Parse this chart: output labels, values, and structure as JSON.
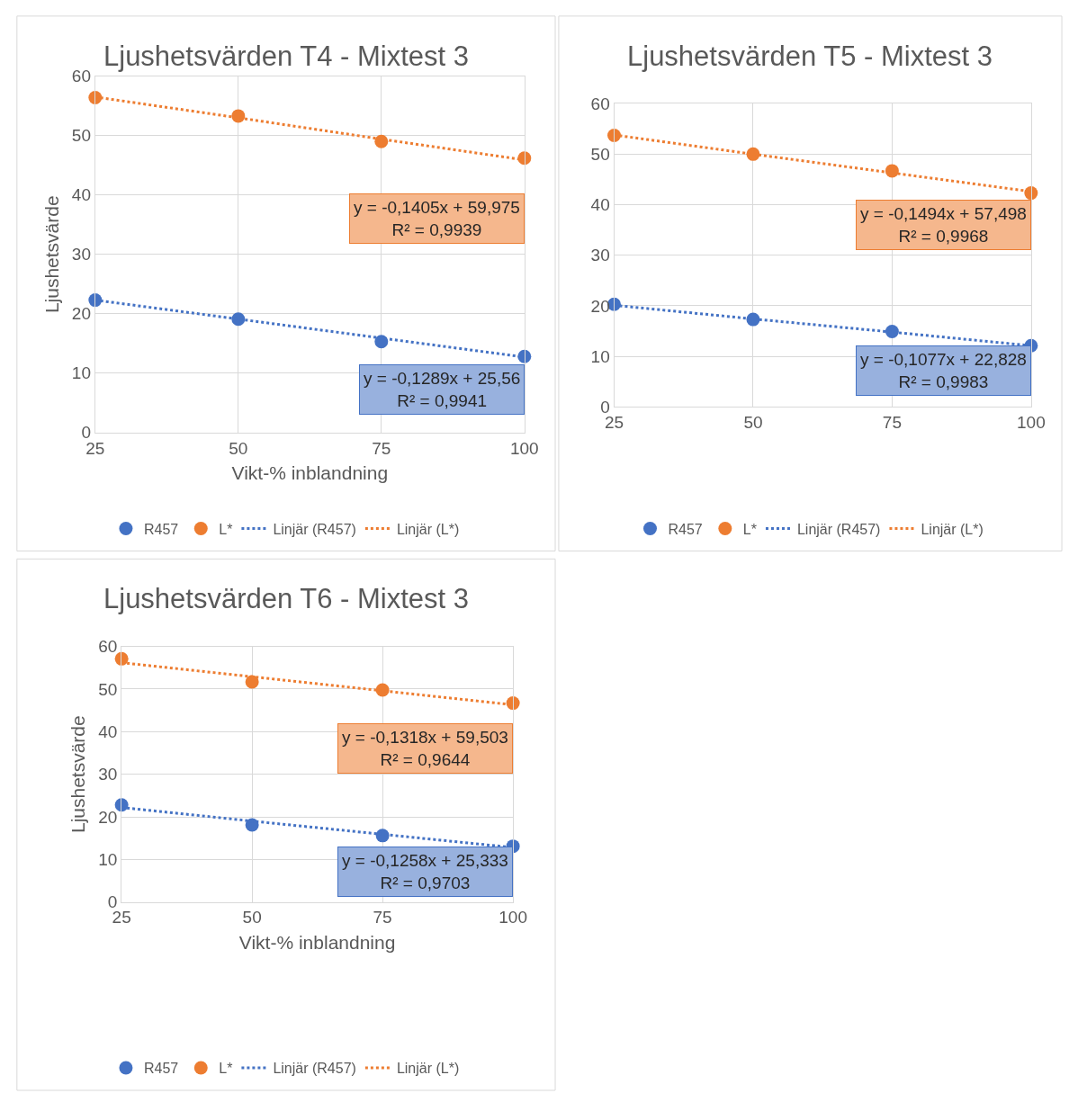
{
  "chart_data": [
    {
      "type": "scatter",
      "title": "Ljushetsvärden T4 - Mixtest 3",
      "xlabel": "Vikt-% inblandning",
      "ylabel": "Ljushetsvärde",
      "x": [
        25,
        50,
        75,
        100
      ],
      "xlim": [
        25,
        100
      ],
      "xticks": [
        25,
        50,
        75,
        100
      ],
      "ylim": [
        0,
        60
      ],
      "yticks": [
        0,
        10,
        20,
        30,
        40,
        50,
        60
      ],
      "grid": true,
      "legend": "bottom",
      "marker": "circle",
      "series": [
        {
          "name": "R457",
          "color": "#4472c4",
          "values": [
            22.3,
            19.1,
            15.3,
            12.8
          ]
        },
        {
          "name": "L*",
          "color": "#ed7d31",
          "values": [
            56.4,
            53.3,
            49.0,
            46.2
          ]
        },
        {
          "name": "Linjär (R457)",
          "type": "line",
          "marker": "none",
          "line_style": "dotted",
          "color": "#4472c4",
          "values": [
            22.3,
            19.1,
            15.9,
            12.7
          ]
        },
        {
          "name": "Linjär (L*)",
          "type": "line",
          "marker": "none",
          "line_style": "dotted",
          "color": "#ed7d31",
          "values": [
            56.5,
            53.0,
            49.4,
            45.9
          ]
        }
      ],
      "annotations": [
        "y = -0,1289x + 25,56\nR² = 0,9941",
        "y = -0,1405x + 59,975\nR² = 0,9939"
      ]
    },
    {
      "type": "scatter",
      "title": "Ljushetsvärden T5 - Mixtest 3",
      "x": [
        25,
        50,
        75,
        100
      ],
      "xlim": [
        25,
        100
      ],
      "xticks": [
        25,
        50,
        75,
        100
      ],
      "ylim": [
        0,
        60
      ],
      "yticks": [
        0,
        10,
        20,
        30,
        40,
        50,
        60
      ],
      "grid": true,
      "legend": "bottom",
      "marker": "circle",
      "series": [
        {
          "name": "R457",
          "color": "#4472c4",
          "values": [
            20.3,
            17.3,
            14.9,
            12.1
          ]
        },
        {
          "name": "L*",
          "color": "#ed7d31",
          "values": [
            53.7,
            50.0,
            46.7,
            42.3
          ]
        },
        {
          "name": "Linjär (R457)",
          "type": "line",
          "marker": "none",
          "line_style": "dotted",
          "color": "#4472c4",
          "values": [
            20.1,
            17.4,
            14.8,
            12.1
          ]
        },
        {
          "name": "Linjär (L*)",
          "type": "line",
          "marker": "none",
          "line_style": "dotted",
          "color": "#ed7d31",
          "values": [
            53.8,
            50.0,
            46.3,
            42.6
          ]
        }
      ],
      "annotations": [
        "y = -0,1077x + 22,828\nR² = 0,9983",
        "y = -0,1494x + 57,498\nR² = 0,9968"
      ]
    },
    {
      "type": "scatter",
      "title": "Ljushetsvärden T6 - Mixtest 3",
      "xlabel": "Vikt-% inblandning",
      "ylabel": "Ljushetsvärde",
      "x": [
        25,
        50,
        75,
        100
      ],
      "xlim": [
        25,
        100
      ],
      "xticks": [
        25,
        50,
        75,
        100
      ],
      "ylim": [
        0,
        60
      ],
      "yticks": [
        0,
        10,
        20,
        30,
        40,
        50,
        60
      ],
      "grid": true,
      "legend": "bottom",
      "marker": "circle",
      "series": [
        {
          "name": "R457",
          "color": "#4472c4",
          "values": [
            22.8,
            18.1,
            15.6,
            13.1
          ]
        },
        {
          "name": "L*",
          "color": "#ed7d31",
          "values": [
            57.1,
            51.7,
            49.8,
            46.7
          ]
        },
        {
          "name": "Linjär (R457)",
          "type": "line",
          "marker": "none",
          "line_style": "dotted",
          "color": "#4472c4",
          "values": [
            22.2,
            19.0,
            15.9,
            12.8
          ]
        },
        {
          "name": "Linjär (L*)",
          "type": "line",
          "marker": "none",
          "line_style": "dotted",
          "color": "#ed7d31",
          "values": [
            56.2,
            52.9,
            49.6,
            46.3
          ]
        }
      ],
      "annotations": [
        "y = -0,1258x + 25,333\nR² = 0,9703",
        "y = -0,1318x + 59,503\nR² = 0,9644"
      ]
    }
  ]
}
